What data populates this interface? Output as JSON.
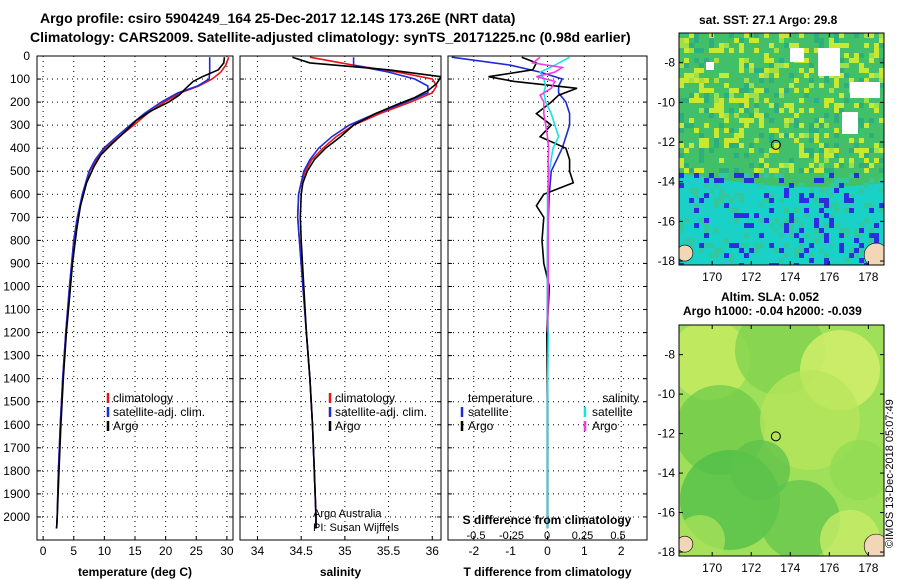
{
  "header": {
    "title_line1": "Argo profile: csiro 5904249_164 25-Dec-2017 12.14S 173.26E (NRT data)",
    "title_line2": "Climatology: CARS2009. Satellite-adjusted climatology: synTS_20171225.nc (0.98d earlier)"
  },
  "side_stamp": "©IMOS 13-Dec-2018 05:07:49",
  "credits": {
    "line1": "Argo Australia",
    "line2": "PI: Susan Wijffels"
  },
  "colors": {
    "climatology": "#e8141b",
    "satellite": "#1f2bd6",
    "argo": "#000000",
    "sat_S": "#19e3e3",
    "argo_S": "#f03ce0"
  },
  "chart_data": [
    {
      "type": "line",
      "name": "temperature-panel",
      "xlabel": "temperature (deg C)",
      "ylabel": "depth",
      "xlim": [
        -1,
        31
      ],
      "ylim": [
        2100,
        0
      ],
      "x_ticks": [
        0,
        5,
        10,
        15,
        20,
        25,
        30
      ],
      "y_ticks": [
        0,
        100,
        200,
        300,
        400,
        500,
        600,
        700,
        800,
        900,
        1000,
        1100,
        1200,
        1300,
        1400,
        1500,
        1600,
        1700,
        1800,
        1900,
        2000
      ],
      "legend": [
        "climatology",
        "satellite-adj. clim.",
        "Argo"
      ],
      "series": [
        {
          "name": "climatology",
          "color": "#e8141b",
          "depth": [
            5,
            40,
            70,
            100,
            130,
            160,
            200,
            250,
            300,
            350,
            400,
            450,
            500,
            600,
            700,
            800,
            1000,
            1200,
            1400,
            1600,
            1800,
            2000,
            2050
          ],
          "values": [
            30.3,
            29.8,
            29.0,
            27.6,
            25.4,
            22.4,
            19.8,
            17.0,
            14.8,
            12.4,
            10.2,
            8.7,
            7.6,
            6.5,
            5.6,
            5.0,
            4.3,
            3.7,
            3.2,
            2.8,
            2.5,
            2.3,
            2.2
          ]
        },
        {
          "name": "satellite-adj. clim.",
          "color": "#1f2bd6",
          "depth": [
            5,
            40,
            70,
            100,
            130,
            160,
            200,
            250,
            300,
            350,
            400,
            450,
            500,
            600,
            700,
            800,
            1000,
            1200,
            1400,
            1600,
            1800,
            2000,
            2050
          ],
          "values": [
            27.2,
            27.2,
            27.2,
            27.1,
            25.2,
            22.0,
            19.3,
            16.5,
            14.2,
            12.0,
            9.9,
            8.5,
            7.5,
            6.4,
            5.6,
            5.0,
            4.3,
            3.7,
            3.2,
            2.8,
            2.5,
            2.3,
            2.2
          ]
        },
        {
          "name": "Argo",
          "color": "#000000",
          "depth": [
            5,
            30,
            60,
            90,
            110,
            140,
            170,
            200,
            240,
            280,
            330,
            380,
            430,
            480,
            550,
            650,
            750,
            900,
            1050,
            1200,
            1400,
            1600,
            1800,
            2000,
            2050
          ],
          "values": [
            29.6,
            29.5,
            28.6,
            26.0,
            24.5,
            23.3,
            22.2,
            20.5,
            17.5,
            15.2,
            13.3,
            11.3,
            9.4,
            8.3,
            7.1,
            6.1,
            5.5,
            4.8,
            4.3,
            3.8,
            3.3,
            2.9,
            2.6,
            2.3,
            2.2
          ]
        }
      ]
    },
    {
      "type": "line",
      "name": "salinity-panel",
      "xlabel": "salinity",
      "xlim": [
        33.8,
        36.1
      ],
      "ylim": [
        2100,
        0
      ],
      "x_ticks": [
        34,
        34.5,
        35,
        35.5,
        36
      ],
      "x_tick_labels": [
        "34",
        "34.5",
        "35",
        "35.5",
        "36"
      ],
      "legend": [
        "climatology",
        "satellite-adj. clim.",
        "Argo"
      ],
      "series": [
        {
          "name": "climatology",
          "color": "#e8141b",
          "depth": [
            5,
            40,
            70,
            100,
            130,
            160,
            200,
            250,
            300,
            350,
            400,
            450,
            500,
            550,
            600,
            700,
            800,
            1000,
            1200,
            1400,
            1600,
            1800,
            2000,
            2050
          ],
          "values": [
            34.6,
            35.1,
            35.6,
            36.0,
            36.05,
            36.0,
            35.75,
            35.4,
            35.1,
            34.9,
            34.75,
            34.62,
            34.55,
            34.5,
            34.47,
            34.46,
            34.48,
            34.52,
            34.56,
            34.6,
            34.63,
            34.65,
            34.67,
            34.67
          ]
        },
        {
          "name": "satellite-adj. clim.",
          "color": "#1f2bd6",
          "depth": [
            5,
            40,
            70,
            100,
            130,
            160,
            200,
            250,
            300,
            350,
            400,
            450,
            500,
            550,
            600,
            700,
            800,
            1000,
            1200,
            1400,
            1600,
            1800,
            2000,
            2050
          ],
          "values": [
            35.1,
            35.1,
            35.5,
            35.8,
            35.95,
            35.95,
            35.7,
            35.35,
            35.05,
            34.85,
            34.7,
            34.6,
            34.53,
            34.5,
            34.47,
            34.46,
            34.48,
            34.52,
            34.56,
            34.6,
            34.63,
            34.65,
            34.67,
            34.67
          ]
        },
        {
          "name": "Argo",
          "color": "#000000",
          "depth": [
            5,
            30,
            60,
            90,
            120,
            150,
            180,
            210,
            250,
            300,
            350,
            400,
            450,
            500,
            550,
            600,
            700,
            800,
            1000,
            1200,
            1400,
            1600,
            1800,
            2000,
            2050
          ],
          "values": [
            34.4,
            34.6,
            35.5,
            36.1,
            36.05,
            35.95,
            35.8,
            35.6,
            35.35,
            35.1,
            34.95,
            34.78,
            34.65,
            34.57,
            34.52,
            34.5,
            34.49,
            34.5,
            34.53,
            34.56,
            34.6,
            34.63,
            34.65,
            34.67,
            34.67
          ]
        }
      ]
    },
    {
      "type": "line",
      "name": "difference-panel",
      "xlabel": "T difference from climatology",
      "xlabel2": "S difference from climatology",
      "xlim": [
        -2.7,
        2.7
      ],
      "ylim": [
        2100,
        0
      ],
      "x_ticks": [
        -2,
        -1,
        0,
        1,
        2
      ],
      "x_tick_labels": [
        "-2",
        "-1",
        "0",
        "1",
        "2"
      ],
      "s_ticks": [
        -0.5,
        -0.25,
        0,
        0.25,
        0.5
      ],
      "s_tick_labels": [
        "-0.5",
        "-0.25",
        "0",
        "0.25",
        "0.5"
      ],
      "legend_left_title": "temperature",
      "legend_right_title": "salinity",
      "legend_left": [
        "satellite",
        "Argo"
      ],
      "legend_right": [
        "satellite",
        "Argo"
      ],
      "series": [
        {
          "name": "T satellite",
          "color": "#1f2bd6",
          "depth": [
            5,
            40,
            70,
            100,
            130,
            160,
            200,
            250,
            300,
            350,
            400,
            500,
            600,
            800,
            1000,
            1500,
            2000,
            2050
          ],
          "values": [
            -2.6,
            -1.0,
            -0.2,
            0.4,
            0.3,
            0.3,
            0.5,
            0.6,
            0.6,
            0.5,
            0.4,
            0.1,
            0.05,
            0.0,
            0.0,
            0.0,
            0.0,
            0.0
          ]
        },
        {
          "name": "T Argo",
          "color": "#000000",
          "depth": [
            5,
            30,
            60,
            90,
            110,
            140,
            170,
            200,
            250,
            300,
            350,
            400,
            450,
            500,
            550,
            600,
            650,
            700,
            800,
            900,
            1000,
            1100,
            1200,
            1500,
            2000,
            2050
          ],
          "values": [
            -0.7,
            -0.3,
            -0.4,
            -1.6,
            -0.9,
            0.8,
            0.3,
            0.1,
            -0.3,
            0.1,
            -0.2,
            0.5,
            0.6,
            0.6,
            0.7,
            -0.1,
            -0.3,
            -0.1,
            -0.15,
            -0.1,
            0.05,
            0.02,
            -0.02,
            0.0,
            0.0,
            0.0
          ]
        },
        {
          "name": "S satellite",
          "color": "#19e3e3",
          "depth": [
            5,
            40,
            70,
            100,
            130,
            160,
            200,
            250,
            300,
            350,
            400,
            500,
            600,
            800,
            1000,
            1200,
            1500,
            2000,
            2050
          ],
          "values": [
            0.6,
            0.2,
            -0.2,
            -0.1,
            -0.05,
            -0.1,
            -0.05,
            0.1,
            0.2,
            0.3,
            0.15,
            0.05,
            0.0,
            0.0,
            0.0,
            0.02,
            0.0,
            0.0,
            0.0
          ]
        },
        {
          "name": "S Argo",
          "color": "#f03ce0",
          "depth": [
            5,
            30,
            50,
            70,
            90,
            110,
            140,
            170,
            200,
            250,
            300,
            350,
            400,
            450,
            500,
            600,
            700,
            800,
            1000,
            1200
          ],
          "values": [
            -0.2,
            -0.4,
            0.4,
            0.2,
            -0.3,
            0.2,
            0.1,
            -0.2,
            -0.1,
            -0.1,
            -0.05,
            0.0,
            0.03,
            0.02,
            0.02,
            0.02,
            0.02,
            0.02,
            0.02,
            0.0
          ]
        }
      ]
    },
    {
      "type": "heatmap",
      "name": "sst-map",
      "title": "sat. SST: 27.1 Argo: 29.8",
      "x_ticks": [
        170,
        172,
        174,
        176,
        178
      ],
      "y_ticks": [
        -8,
        -10,
        -12,
        -14,
        -16,
        -18
      ],
      "xlim": [
        168.3,
        178.8
      ],
      "ylim": [
        -18.2,
        -6.5
      ],
      "float_position": [
        173.26,
        -12.14
      ]
    },
    {
      "type": "heatmap",
      "name": "sla-map",
      "title": "Altim. SLA: 0.052",
      "subtitle": "Argo h1000: -0.04 h2000: -0.039",
      "x_ticks": [
        170,
        172,
        174,
        176,
        178
      ],
      "y_ticks": [
        -8,
        -10,
        -12,
        -14,
        -16,
        -18
      ],
      "xlim": [
        168.3,
        178.8
      ],
      "ylim": [
        -18.2,
        -6.5
      ],
      "float_position": [
        173.26,
        -12.14
      ]
    }
  ]
}
